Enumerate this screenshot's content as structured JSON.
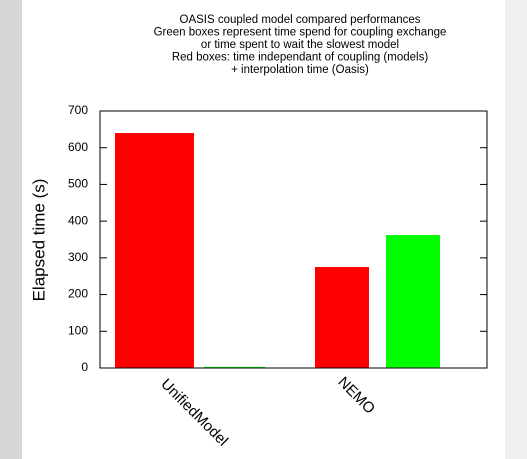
{
  "chart_data": {
    "type": "bar",
    "title": [
      "OASIS coupled model compared performances",
      "Green boxes represent time spend for coupling exchange",
      "or time spent to wait the slowest model",
      "Red boxes: time independant of coupling (models)",
      "+ interpolation time (Oasis)"
    ],
    "ylabel": "Elapsed time (s)",
    "categories": [
      "UnifiedModel",
      "NEMO"
    ],
    "series": [
      {
        "color": "#ff0000",
        "values": [
          640,
          275
        ]
      },
      {
        "color": "#00ff00",
        "values": [
          3,
          362
        ]
      }
    ],
    "ylim": [
      0,
      700
    ],
    "yticks": [
      0,
      100,
      200,
      300,
      400,
      500,
      600,
      700
    ]
  }
}
